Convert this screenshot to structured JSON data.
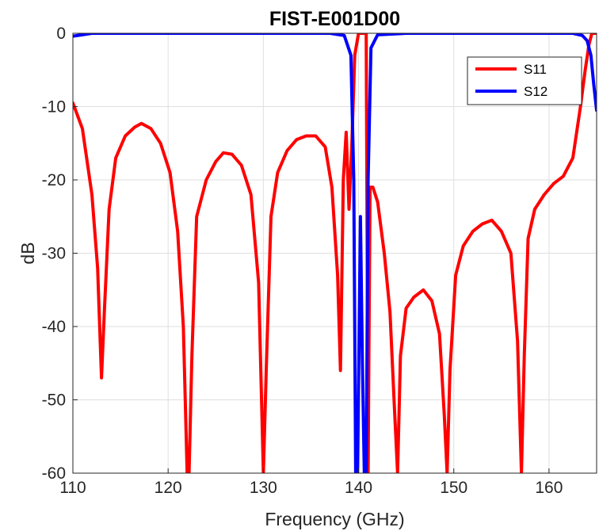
{
  "chart_data": {
    "type": "line",
    "title": "FIST-E001D00",
    "xlabel": "Frequency (GHz)",
    "ylabel": "dB",
    "xlim": [
      110,
      165
    ],
    "ylim": [
      -60,
      0
    ],
    "xticks": [
      110,
      120,
      130,
      140,
      150,
      160
    ],
    "yticks": [
      0,
      -10,
      -20,
      -30,
      -40,
      -50,
      -60
    ],
    "grid": true,
    "legend_position": "top-right",
    "series": [
      {
        "name": "S11",
        "color": "#ff0000",
        "x": [
          110,
          111,
          112,
          112.6,
          113,
          113.3,
          113.8,
          114.5,
          115.5,
          116.5,
          117.2,
          118.2,
          119.2,
          120.2,
          121,
          121.6,
          122,
          122.2,
          122.5,
          123,
          124,
          125,
          125.8,
          126.7,
          127.7,
          128.7,
          129.5,
          130,
          130.3,
          130.8,
          131.5,
          132.5,
          133.5,
          134.5,
          135.5,
          136.5,
          137.2,
          137.8,
          138.1,
          138.4,
          138.7,
          139,
          139.3,
          139.6,
          140,
          140.3,
          140.6,
          140.8,
          141,
          141.2,
          141.5,
          142,
          142.7,
          143.3,
          143.8,
          144.1,
          144.4,
          145,
          145.8,
          146.8,
          147.7,
          148.5,
          149,
          149.3,
          149.6,
          150.2,
          151,
          152,
          153,
          154,
          155,
          156,
          156.7,
          157.1,
          157.4,
          157.8,
          158.5,
          159.5,
          160.5,
          161.5,
          162.5,
          163.3,
          163.8,
          164.2,
          164.5,
          165
        ],
        "y": [
          -9.5,
          -13,
          -22,
          -32,
          -47,
          -38,
          -24,
          -17,
          -14,
          -12.8,
          -12.3,
          -13,
          -15,
          -19,
          -27,
          -40,
          -60,
          -60,
          -44,
          -25,
          -20,
          -17.5,
          -16.3,
          -16.5,
          -18,
          -22,
          -34,
          -60,
          -46,
          -25,
          -19,
          -16,
          -14.5,
          -14,
          -14,
          -15.5,
          -21,
          -33,
          -46,
          -20,
          -13.5,
          -24,
          -15,
          -3,
          0,
          0,
          0,
          0,
          -60,
          -21,
          -21,
          -23,
          -30,
          -38,
          -52,
          -60,
          -44,
          -37.5,
          -36,
          -35,
          -36.5,
          -41,
          -52,
          -60,
          -46,
          -33,
          -29,
          -27,
          -26,
          -25.5,
          -27,
          -30,
          -42,
          -60,
          -44,
          -28,
          -24,
          -22,
          -20.5,
          -19.5,
          -17,
          -10,
          -5,
          -1.5,
          0,
          0
        ]
      },
      {
        "name": "S12",
        "color": "#0000ff",
        "x": [
          110,
          111,
          112,
          114,
          118,
          122,
          126,
          130,
          134,
          137,
          138.5,
          139.2,
          139.5,
          139.7,
          139.9,
          140.2,
          140.4,
          140.6,
          140.8,
          141,
          141.3,
          142,
          145,
          150,
          155,
          160,
          162.5,
          163.5,
          164,
          164.4,
          164.7,
          165
        ],
        "y": [
          -0.4,
          -0.2,
          0,
          0,
          0,
          0,
          0,
          0,
          0,
          0,
          -0.3,
          -3,
          -20,
          -60,
          -60,
          -25,
          -45,
          -60,
          -60,
          -20,
          -2,
          -0.2,
          0,
          0,
          0,
          0,
          0,
          -0.3,
          -1,
          -3,
          -7,
          -10.5
        ]
      }
    ]
  }
}
